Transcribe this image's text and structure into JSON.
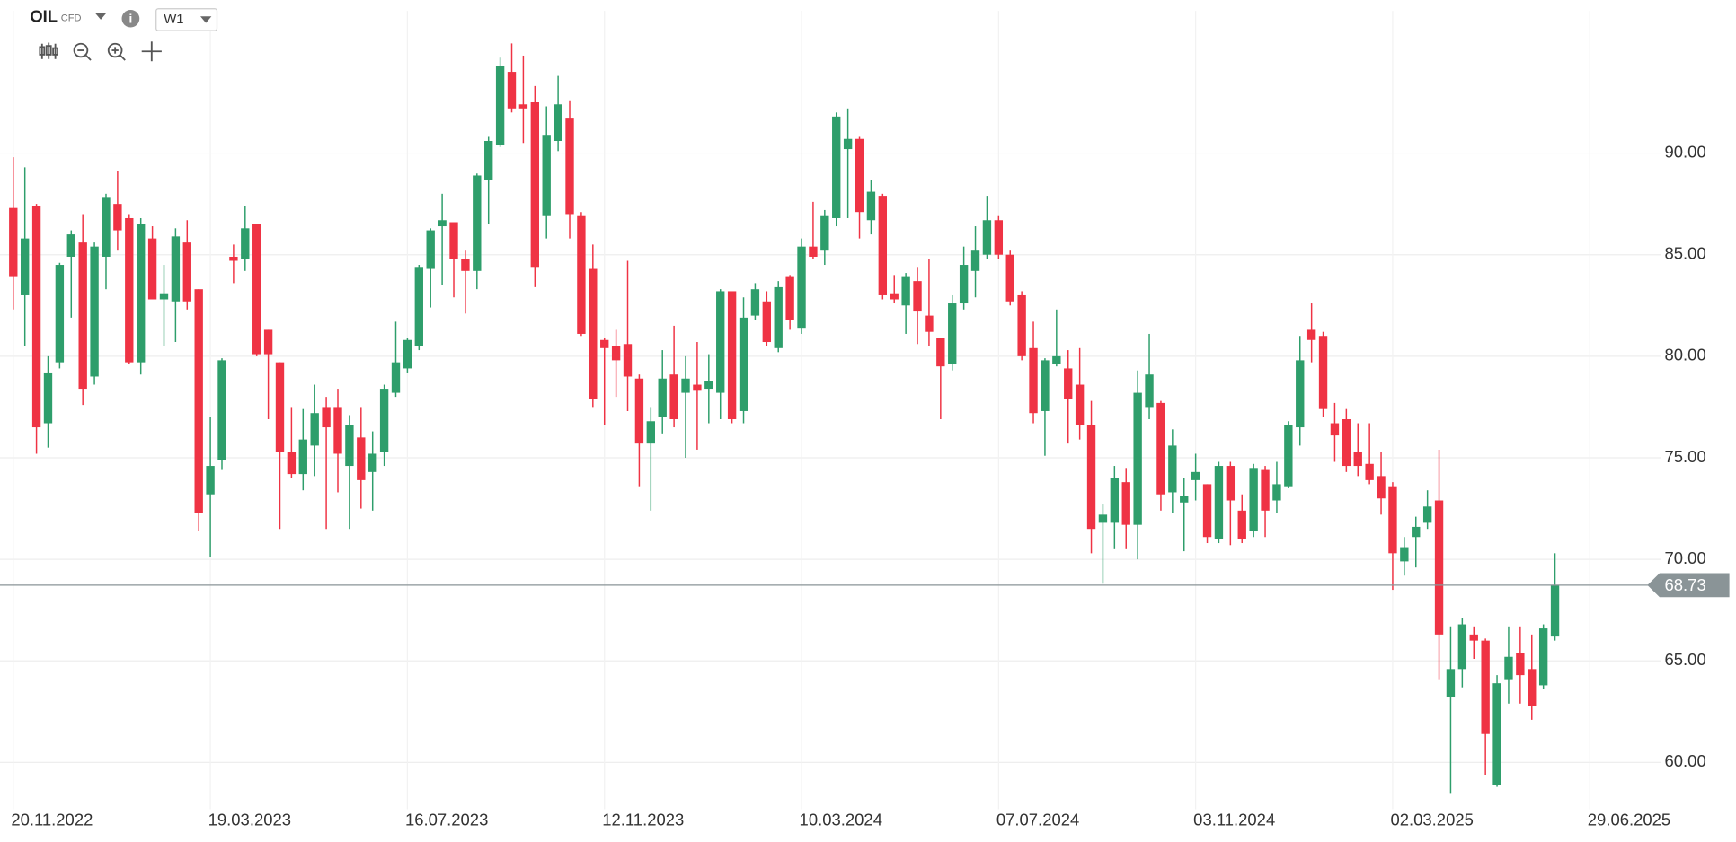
{
  "header": {
    "symbol": "OIL",
    "instrument": "CFD",
    "interval": "W1"
  },
  "chart_data": {
    "type": "candlestick",
    "up_color": "#2e9e6b",
    "down_color": "#ef3344",
    "ylim": [
      57.7,
      97
    ],
    "yticks": [
      {
        "value": 60,
        "label": "60.00"
      },
      {
        "value": 65,
        "label": "65.00"
      },
      {
        "value": 70,
        "label": "70.00"
      },
      {
        "value": 75,
        "label": "75.00"
      },
      {
        "value": 80,
        "label": "80.00"
      },
      {
        "value": 85,
        "label": "85.00"
      },
      {
        "value": 90,
        "label": "90.00"
      }
    ],
    "xticks": [
      "20.11.2022",
      "19.03.2023",
      "16.07.2023",
      "12.11.2023",
      "10.03.2024",
      "07.07.2024",
      "03.11.2024",
      "02.03.2025",
      "29.06.2025"
    ],
    "grid": true,
    "last_price": 68.73,
    "open": [
      87.3,
      83,
      87.4,
      76.7,
      79.7,
      84.9,
      85.6,
      79,
      84.9,
      87.5,
      86.8,
      79.7,
      85.8,
      82.8,
      82.7,
      85.6,
      83.3,
      73.2,
      74.9,
      84.9,
      84.8,
      86.5,
      81.3,
      79.7,
      75.3,
      74.2,
      75.6,
      77.5,
      77.5,
      74.6,
      76,
      74.3,
      75.3,
      78.2,
      79.4,
      80.5,
      84.3,
      86.4,
      86.6,
      84.8,
      84.2,
      88.7,
      90.4,
      94,
      92.4,
      92.5,
      86.9,
      90.6,
      91.7,
      86.9,
      84.3,
      80.8,
      80.5,
      80.6,
      78.9,
      75.7,
      77,
      79.1,
      78.2,
      78.6,
      78.4,
      78.2,
      83.2,
      77.3,
      82,
      82.7,
      80.4,
      83.9,
      81.4,
      85.4,
      85.2,
      86.8,
      90.2,
      90.7,
      86.7,
      87.9,
      83.1,
      82.5,
      83.7,
      82,
      80.9,
      79.6,
      82.6,
      84.2,
      85,
      86.7,
      85,
      83,
      80.4,
      77.3,
      79.6,
      79.4,
      78.6,
      76.6,
      71.8,
      71.8,
      73.8,
      71.7,
      77.5,
      77.7,
      73.3,
      72.8,
      73.9,
      73.7,
      71,
      74.6,
      72.4,
      71.4,
      74.4,
      72.9,
      73.6,
      76.5,
      81.3,
      81,
      76.7,
      76.9,
      75.3,
      74.7,
      74.1,
      73.6,
      69.9,
      71.1,
      71.8,
      72.9,
      63.2,
      64.6,
      66.3,
      66,
      58.9,
      64.1,
      65.4,
      64.6,
      63.8,
      66.2
    ],
    "high": [
      89.8,
      89.3,
      87.5,
      80,
      84.6,
      86.2,
      87,
      85.6,
      88,
      89.1,
      87,
      86.8,
      86.4,
      84.5,
      86.3,
      86.7,
      83.3,
      77,
      79.9,
      85.5,
      87.4,
      86.5,
      81.3,
      79.7,
      77.5,
      77.4,
      78.6,
      78,
      78.4,
      77.1,
      77.5,
      76.3,
      78.6,
      81.7,
      80.9,
      84.5,
      86.3,
      88,
      86.6,
      85.2,
      89,
      90.8,
      94.7,
      95.4,
      94.8,
      93.3,
      92.3,
      93.8,
      92.6,
      87.1,
      85.5,
      80.9,
      81.3,
      84.7,
      79.1,
      77.5,
      80.3,
      81.5,
      80,
      80.7,
      80.1,
      83.3,
      83.2,
      82.9,
      83.6,
      83.2,
      83.7,
      84,
      85.8,
      87.6,
      87.2,
      92,
      92.2,
      90.8,
      88.7,
      88,
      84,
      84.1,
      84.4,
      84.8,
      80.9,
      83,
      85.4,
      86.4,
      87.9,
      86.9,
      85.2,
      83.2,
      81.7,
      79.9,
      82.3,
      80.3,
      80.4,
      77.8,
      72.7,
      74.6,
      74.5,
      79.3,
      81.1,
      77.8,
      76.4,
      74,
      75.2,
      73.7,
      74.8,
      74.8,
      73.2,
      74.7,
      74.6,
      74.8,
      76.8,
      81,
      82.6,
      81.2,
      77.7,
      77.4,
      76.7,
      76.7,
      75.3,
      73.8,
      71.1,
      72.1,
      73.4,
      75.4,
      66.7,
      67.1,
      66.7,
      66.1,
      64.3,
      66.7,
      66.7,
      66.3,
      66.8,
      70.3
    ],
    "low": [
      82.3,
      80.5,
      75.2,
      75.5,
      79.4,
      81.9,
      77.6,
      78.6,
      83.3,
      85.2,
      79.6,
      79.1,
      82.8,
      80.5,
      80.7,
      82.3,
      71.4,
      70.1,
      74.4,
      83.6,
      84.2,
      80,
      76.9,
      71.5,
      74,
      73.4,
      74.1,
      71.5,
      73.3,
      71.5,
      72.5,
      72.4,
      74.6,
      78,
      79.2,
      80.3,
      82.4,
      83.5,
      82.9,
      82.1,
      83.3,
      86.5,
      90.3,
      92,
      90.5,
      83.4,
      85.8,
      90.1,
      85.8,
      81,
      77.5,
      76.6,
      78,
      77.3,
      73.6,
      72.4,
      76.2,
      76.5,
      75,
      75.4,
      76.7,
      76.9,
      76.7,
      76.7,
      81.8,
      80.5,
      80.2,
      81.3,
      81.1,
      84.8,
      84.5,
      86.4,
      86.8,
      85.8,
      86,
      82.8,
      82.6,
      81.1,
      80.6,
      80.5,
      76.9,
      79.3,
      82.3,
      82.9,
      84.8,
      84.8,
      82.5,
      79.8,
      76.7,
      75.1,
      79.5,
      75.7,
      75.9,
      70.3,
      68.8,
      70.5,
      70.5,
      70,
      76.9,
      72.4,
      72.3,
      70.4,
      72.9,
      70.8,
      70.8,
      70.7,
      70.8,
      71.1,
      71.1,
      72.3,
      73.5,
      75.6,
      79.7,
      77,
      74.8,
      74.3,
      74.1,
      73.7,
      72.2,
      68.5,
      69.2,
      69.6,
      71.5,
      64.1,
      58.5,
      63.7,
      65.1,
      59.4,
      58.8,
      62.9,
      62.9,
      62.1,
      63.6,
      66
    ],
    "close": [
      83.9,
      85.8,
      76.5,
      79.2,
      84.5,
      86,
      78.4,
      85.4,
      87.8,
      86.2,
      79.7,
      86.5,
      82.8,
      83.1,
      85.9,
      82.7,
      72.3,
      74.6,
      79.8,
      84.7,
      86.3,
      80.1,
      80.1,
      75.3,
      74.2,
      75.9,
      77.2,
      76.5,
      75.2,
      76.6,
      73.9,
      75.2,
      78.4,
      79.7,
      80.8,
      84.4,
      86.2,
      86.7,
      84.8,
      84.2,
      88.9,
      90.6,
      94.3,
      92.2,
      92.2,
      84.4,
      90.9,
      92.4,
      87,
      81.1,
      77.9,
      80.4,
      79.8,
      79,
      75.7,
      76.8,
      78.9,
      76.9,
      78.9,
      78.3,
      78.8,
      83.2,
      76.9,
      81.9,
      83.3,
      80.7,
      83.4,
      81.8,
      85.4,
      84.9,
      86.9,
      91.8,
      90.7,
      87.1,
      88.1,
      83,
      82.8,
      83.9,
      82.2,
      81.2,
      79.5,
      82.6,
      84.5,
      85.2,
      86.7,
      85,
      82.7,
      80,
      77.2,
      79.8,
      80,
      77.9,
      76.6,
      71.5,
      72.2,
      74,
      71.7,
      78.2,
      79.1,
      73.2,
      75.6,
      73.1,
      74.3,
      71.1,
      74.6,
      72.9,
      71,
      74.5,
      72.4,
      73.7,
      76.6,
      79.8,
      80.8,
      77.4,
      76.1,
      74.6,
      74.6,
      73.9,
      73,
      70.3,
      70.6,
      71.6,
      72.6,
      66.3,
      64.6,
      66.8,
      66,
      61.4,
      63.9,
      65.2,
      64.3,
      62.8,
      66.6,
      68.73
    ]
  }
}
